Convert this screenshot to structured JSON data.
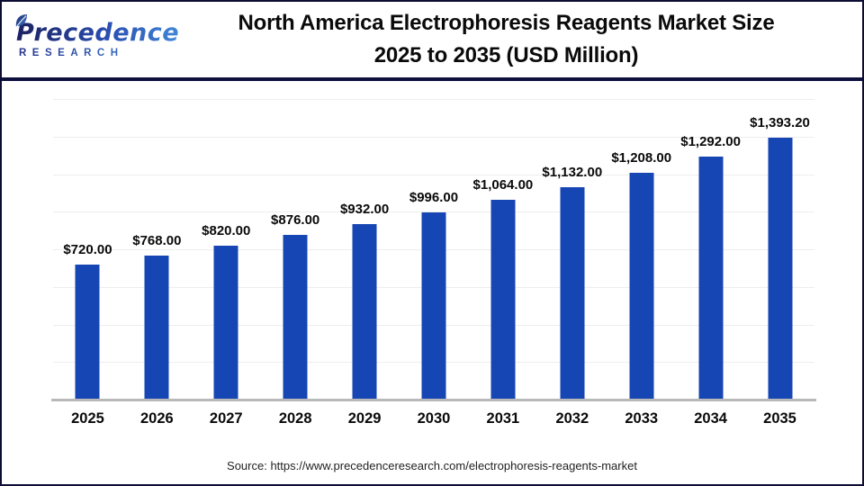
{
  "header": {
    "logo": {
      "brand_top": "Precedence",
      "brand_bottom": "RESEARCH"
    },
    "title_line1": "North America Electrophoresis Reagents Market Size",
    "title_line2": "2025 to 2035 (USD Million)"
  },
  "chart_data": {
    "type": "bar",
    "title": "North America Electrophoresis Reagents Market Size 2025 to 2035 (USD Million)",
    "categories": [
      "2025",
      "2026",
      "2027",
      "2028",
      "2029",
      "2030",
      "2031",
      "2032",
      "2033",
      "2034",
      "2035"
    ],
    "values": [
      720,
      768,
      820,
      876,
      932,
      996,
      1064,
      1132,
      1208,
      1292,
      1393.2
    ],
    "value_labels": [
      "$720.00",
      "$768.00",
      "$820.00",
      "$876.00",
      "$932.00",
      "$996.00",
      "$1,064.00",
      "$1,132.00",
      "$1,208.00",
      "$1,292.00",
      "$1,393.20"
    ],
    "xlabel": "",
    "ylabel": "",
    "unit": "USD Million",
    "ylim": [
      0,
      1600
    ],
    "gridline_step": 200,
    "grid": "horizontal",
    "legend": "none",
    "bar_color": "#1646b4"
  },
  "footer": {
    "source": "Source: https://www.precedenceresearch.com/electrophoresis-reagents-market"
  },
  "colors": {
    "bar": "#1646b4",
    "divider": "#10103e",
    "page_border": "#0d0d34",
    "gridline": "#ededed",
    "axis_line": "#b9b9b9",
    "title_text": "#0a0a0a",
    "source_text": "#222222",
    "logo_navy": "#1c2161",
    "logo_blue": "#4186d6"
  }
}
